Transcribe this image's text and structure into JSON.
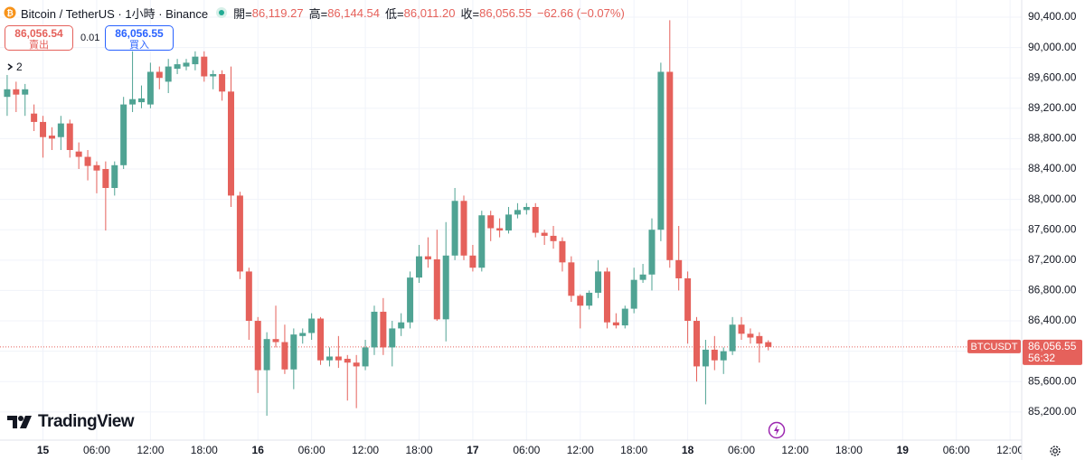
{
  "header": {
    "symbol": "Bitcoin / TetherUS · 1小時 · Binance",
    "ohlc": [
      {
        "label": "開=",
        "value": "86,119.27"
      },
      {
        "label": "高=",
        "value": "86,144.54"
      },
      {
        "label": "低=",
        "value": "86,011.20"
      },
      {
        "label": "收=",
        "value": "86,056.55"
      }
    ],
    "change": "−62.66 (−0.07%)"
  },
  "trade": {
    "sell_price": "86,056.54",
    "sell": "賣出",
    "quantity": "0.01",
    "buy_price": "86,056.55",
    "buy": "買入"
  },
  "indicator_count": "2",
  "logo": "TradingView",
  "chart_data": {
    "type": "candlestick",
    "up_color": "#4fa393",
    "down_color": "#e5615b",
    "grid": true,
    "open": [
      89350,
      89450,
      89380,
      89130,
      89020,
      88840,
      88820,
      89000,
      88630,
      88560,
      88450,
      88400,
      88150,
      88450,
      89250,
      89280,
      89250,
      89680,
      89550,
      89720,
      89750,
      89780,
      89880,
      89620,
      89650,
      89420,
      88050,
      87050,
      86400,
      85750,
      86160,
      86120,
      85760,
      86200,
      86240,
      86430,
      85880,
      85930,
      85900,
      85850,
      85800,
      86050,
      86520,
      86050,
      86300,
      86380,
      86970,
      87250,
      87210,
      86420,
      87260,
      87980,
      87260,
      87100,
      87790,
      87620,
      87590,
      87800,
      87860,
      87900,
      87560,
      87520,
      87450,
      87170,
      86730,
      86600,
      86770,
      87050,
      86380,
      86340,
      86560,
      86940,
      87010,
      87600,
      89680,
      87200,
      86960,
      86400,
      85800,
      86020,
      85880,
      86000,
      86350,
      86230,
      86200,
      86119.27
    ],
    "high": [
      89650,
      89550,
      89520,
      89250,
      89100,
      88950,
      89100,
      89050,
      88750,
      88650,
      88500,
      88500,
      88500,
      89350,
      89950,
      89500,
      89800,
      89750,
      89850,
      89850,
      89850,
      89950,
      89950,
      89700,
      89700,
      89750,
      88100,
      87100,
      86450,
      86250,
      86600,
      86350,
      86300,
      86300,
      86500,
      86450,
      86050,
      86200,
      85950,
      85950,
      86150,
      86600,
      86700,
      86400,
      86500,
      87050,
      87400,
      87500,
      87600,
      87700,
      88150,
      88050,
      87400,
      87850,
      87850,
      87750,
      87900,
      87950,
      87950,
      87950,
      87600,
      87650,
      87500,
      87250,
      86750,
      86800,
      87200,
      87100,
      86500,
      86600,
      87100,
      87150,
      87750,
      89800,
      90360,
      87650,
      87050,
      86450,
      86150,
      86200,
      86050,
      86450,
      86450,
      86300,
      86250,
      86144.54
    ],
    "low": [
      89100,
      89150,
      89100,
      88900,
      88550,
      88650,
      88650,
      88550,
      88400,
      88250,
      88080,
      87590,
      88050,
      88400,
      89150,
      89200,
      89200,
      89450,
      89400,
      89650,
      89700,
      89700,
      89550,
      89450,
      89300,
      87900,
      86950,
      86150,
      85450,
      85150,
      86050,
      85700,
      85500,
      86100,
      86150,
      85820,
      85800,
      85780,
      85350,
      85250,
      85750,
      85950,
      85950,
      85800,
      86200,
      86300,
      86900,
      87100,
      86400,
      86130,
      87200,
      87200,
      87050,
      87050,
      87450,
      87500,
      87550,
      87750,
      87800,
      87500,
      87400,
      87350,
      87050,
      86650,
      86300,
      86550,
      86700,
      86300,
      86300,
      86300,
      86500,
      86900,
      86800,
      87450,
      87100,
      86800,
      86100,
      85600,
      85300,
      85750,
      85700,
      85950,
      86150,
      86100,
      85850,
      86011.2
    ],
    "close": [
      89450,
      89380,
      89450,
      89020,
      88820,
      88800,
      89000,
      88650,
      88560,
      88440,
      88380,
      88150,
      88450,
      89250,
      89320,
      89330,
      89680,
      89600,
      89750,
      89780,
      89800,
      89880,
      89620,
      89650,
      89420,
      88050,
      87050,
      86400,
      85750,
      86160,
      86120,
      85760,
      86220,
      86240,
      86430,
      85880,
      85930,
      85880,
      85850,
      85800,
      86050,
      86520,
      86050,
      86300,
      86380,
      86970,
      87250,
      87210,
      86420,
      87260,
      87980,
      87260,
      87100,
      87790,
      87620,
      87590,
      87800,
      87860,
      87900,
      87560,
      87520,
      87450,
      87170,
      86730,
      86600,
      86770,
      87050,
      86380,
      86340,
      86560,
      86940,
      87010,
      87600,
      89680,
      87200,
      86960,
      86400,
      85800,
      86020,
      85880,
      86000,
      86350,
      86230,
      86180,
      86100,
      86056.55
    ],
    "xlim": [
      -0.8,
      113.3
    ],
    "xticks": [
      {
        "value": 4,
        "label": "15"
      },
      {
        "value": 10,
        "label": "06:00"
      },
      {
        "value": 16,
        "label": "12:00"
      },
      {
        "value": 22,
        "label": "18:00"
      },
      {
        "value": 28,
        "label": "16"
      },
      {
        "value": 34,
        "label": "06:00"
      },
      {
        "value": 40,
        "label": "12:00"
      },
      {
        "value": 46,
        "label": "18:00"
      },
      {
        "value": 52,
        "label": "17"
      },
      {
        "value": 58,
        "label": "06:00"
      },
      {
        "value": 64,
        "label": "12:00"
      },
      {
        "value": 70,
        "label": "18:00"
      },
      {
        "value": 76,
        "label": "18"
      },
      {
        "value": 82,
        "label": "06:00"
      },
      {
        "value": 88,
        "label": "12:00"
      },
      {
        "value": 94,
        "label": "18:00"
      },
      {
        "value": 100,
        "label": "19"
      },
      {
        "value": 106,
        "label": "06:00"
      },
      {
        "value": 112,
        "label": "12:00"
      }
    ],
    "ylim": [
      84829,
      90626
    ],
    "yticks": [
      {
        "value": 85200,
        "label": "85,200.00"
      },
      {
        "value": 85600,
        "label": "85,600.00"
      },
      {
        "value": 86000,
        "label": "86,000.00"
      },
      {
        "value": 86400,
        "label": "86,400.00"
      },
      {
        "value": 86800,
        "label": "86,800.00"
      },
      {
        "value": 87200,
        "label": "87,200.00"
      },
      {
        "value": 87600,
        "label": "87,600.00"
      },
      {
        "value": 88000,
        "label": "88,000.00"
      },
      {
        "value": 88400,
        "label": "88,400.00"
      },
      {
        "value": 88800,
        "label": "88,800.00"
      },
      {
        "value": 89200,
        "label": "89,200.00"
      },
      {
        "value": 89600,
        "label": "89,600.00"
      },
      {
        "value": 90000,
        "label": "90,000.00"
      },
      {
        "value": 90400,
        "label": "90,400.00"
      }
    ],
    "price_line": {
      "value": 86056.55,
      "label": "86,056.55",
      "symbol": "BTCUSDT",
      "countdown": "56:32"
    }
  }
}
